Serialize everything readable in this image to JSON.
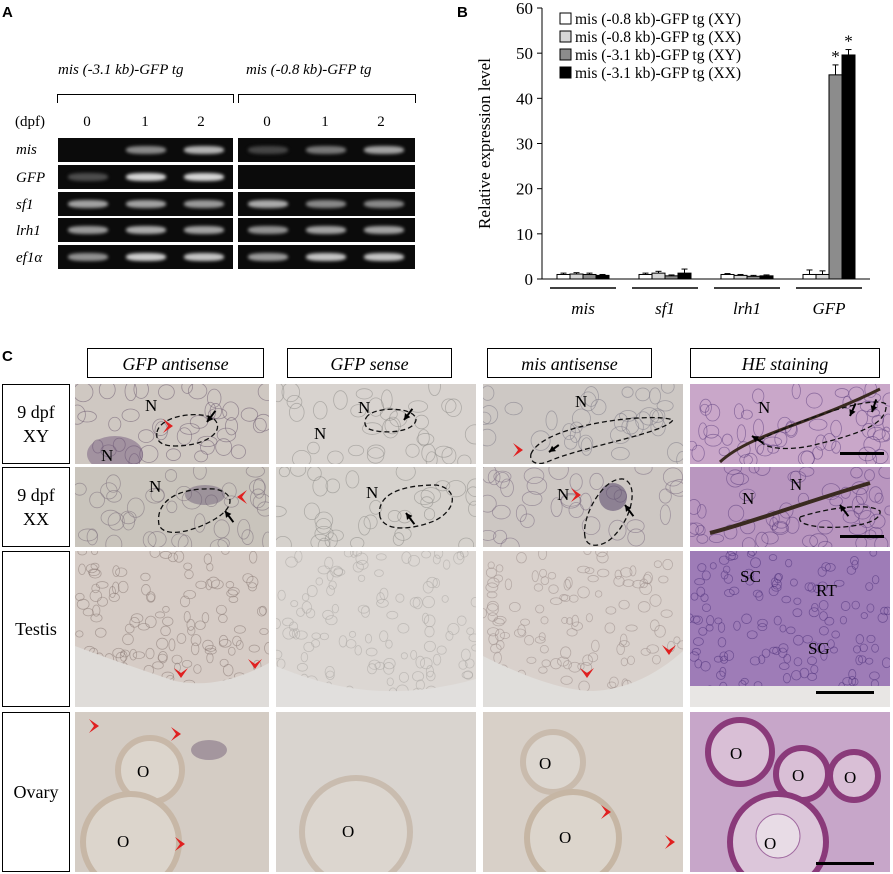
{
  "panel_a": {
    "letter": "A",
    "left_title": "mis (-3.1 kb)-GFP tg",
    "right_title": "mis (-0.8 kb)-GFP tg",
    "dpf_label": "(dpf)",
    "days": [
      "0",
      "1",
      "2"
    ],
    "genes": [
      "mis",
      "GFP",
      "sf1",
      "lrh1",
      "ef1α"
    ],
    "gel_bands": {
      "left": [
        [
          0.0,
          0.45,
          0.7
        ],
        [
          0.1,
          0.9,
          0.9
        ],
        [
          0.6,
          0.6,
          0.55
        ],
        [
          0.55,
          0.65,
          0.6
        ],
        [
          0.5,
          0.85,
          0.8
        ]
      ],
      "right": [
        [
          0.05,
          0.35,
          0.6
        ],
        [
          0.0,
          0.0,
          0.0
        ],
        [
          0.65,
          0.45,
          0.45
        ],
        [
          0.5,
          0.6,
          0.6
        ],
        [
          0.55,
          0.8,
          0.8
        ]
      ]
    }
  },
  "panel_b": {
    "letter": "B",
    "chart_data": {
      "type": "bar",
      "categories": [
        "mis",
        "sf1",
        "lrh1",
        "GFP"
      ],
      "ylabel": "Relative expression level",
      "ylim": [
        0,
        60
      ],
      "yticks": [
        0,
        10,
        20,
        30,
        40,
        50,
        60
      ],
      "series": [
        {
          "name": "mis (-0.8 kb)-GFP tg (XY)",
          "color": "#ffffff",
          "values": [
            1.0,
            1.0,
            1.0,
            1.0
          ],
          "errors": [
            0.3,
            0.3,
            0.2,
            1.0
          ]
        },
        {
          "name": "mis (-0.8 kb)-GFP tg (XX)",
          "color": "#d6d6d6",
          "values": [
            1.1,
            1.3,
            0.8,
            1.0
          ],
          "errors": [
            0.3,
            0.4,
            0.2,
            0.8
          ]
        },
        {
          "name": "mis (-3.1 kb)-GFP tg (XY)",
          "color": "#8c8c8c",
          "values": [
            1.0,
            0.7,
            0.6,
            45.2
          ],
          "errors": [
            0.3,
            0.2,
            0.2,
            2.2
          ]
        },
        {
          "name": "mis (-3.1 kb)-GFP tg (XX)",
          "color": "#000000",
          "values": [
            0.8,
            1.3,
            0.7,
            49.6
          ],
          "errors": [
            0.2,
            0.9,
            0.2,
            1.2
          ]
        }
      ],
      "annotations": [
        "*",
        "*"
      ]
    }
  },
  "panel_c": {
    "letter": "C",
    "columns": [
      "GFP antisense",
      "GFP sense",
      "mis antisense",
      "HE staining"
    ],
    "rows": [
      {
        "line1": "9 dpf",
        "line2": "XY"
      },
      {
        "line1": "9 dpf",
        "line2": "XX"
      },
      {
        "line1": "Testis",
        "line2": ""
      },
      {
        "line1": "Ovary",
        "line2": ""
      }
    ],
    "labels": {
      "N": "N",
      "O": "O",
      "SC": "SC",
      "RT": "RT",
      "SG": "SG"
    }
  }
}
